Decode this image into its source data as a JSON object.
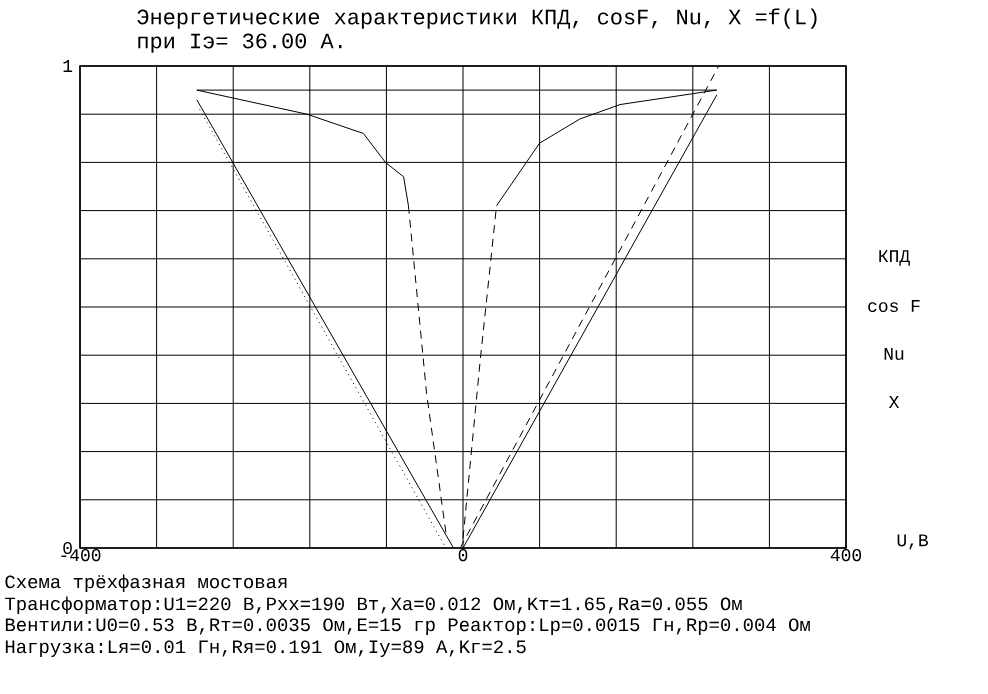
{
  "chart_data": {
    "type": "line",
    "title": "Энергетические характеристики  КПД, cosF, Nu, X =f(L)",
    "subtitle": "при Iэ= 36.00 А.",
    "xlabel": "U,В",
    "xlim": [
      -400,
      400
    ],
    "ylim": [
      0,
      1
    ],
    "xticks": [
      -400,
      {
        "value": -320,
        "label": null
      },
      {
        "value": -240,
        "label": null
      },
      {
        "value": -160,
        "label": null
      },
      {
        "value": -80,
        "label": null
      },
      0,
      {
        "value": 80,
        "label": null
      },
      {
        "value": 160,
        "label": null
      },
      {
        "value": 240,
        "label": null
      },
      {
        "value": 320,
        "label": null
      },
      400
    ],
    "yticks": [
      0,
      {
        "value": 0.1,
        "label": null
      },
      {
        "value": 0.2,
        "label": null
      },
      {
        "value": 0.3,
        "label": null
      },
      {
        "value": 0.4,
        "label": null
      },
      {
        "value": 0.5,
        "label": null
      },
      {
        "value": 0.6,
        "label": null
      },
      {
        "value": 0.7,
        "label": null
      },
      {
        "value": 0.8,
        "label": null
      },
      {
        "value": 0.9,
        "label": null
      },
      1
    ],
    "grid": true,
    "series": [
      {
        "color": "#000000",
        "line_style": "solid",
        "x": [
          -278,
          -163,
          -104,
          -81,
          -62,
          -57
        ],
        "values": [
          0.95,
          0.9,
          0.86,
          0.8,
          0.77,
          0.71
        ]
      },
      {
        "color": "#000000",
        "line_style": "dashed",
        "x": [
          -57,
          -38,
          -17
        ],
        "values": [
          0.71,
          0.32,
          0.02
        ]
      },
      {
        "color": "#000000",
        "line_style": "dashed",
        "x": [
          0,
          18,
          35
        ],
        "values": [
          0.02,
          0.39,
          0.71
        ]
      },
      {
        "color": "#000000",
        "line_style": "solid",
        "x": [
          35,
          80,
          122,
          164,
          265
        ],
        "values": [
          0.71,
          0.84,
          0.89,
          0.92,
          0.95
        ]
      },
      {
        "color": "#000000",
        "line_style": "solid",
        "x": [
          -278,
          265
        ],
        "values": [
          0.95,
          0.95
        ]
      },
      {
        "color": "#000000",
        "line_style": "solid",
        "x": [
          -278,
          -10
        ],
        "values": [
          0.93,
          0
        ]
      },
      {
        "color": "#000000",
        "line_style": "dotted",
        "x": [
          -275,
          -18
        ],
        "values": [
          0.91,
          0
        ]
      },
      {
        "color": "#000000",
        "line_style": "solid",
        "x": [
          0,
          265
        ],
        "values": [
          0,
          0.94
        ]
      },
      {
        "color": "#000000",
        "line_style": "dashed",
        "x": [
          -3,
          267
        ],
        "values": [
          0,
          1.0
        ]
      }
    ],
    "annotations": [
      "КПД",
      "cos F",
      "Nu",
      "X",
      "Схема трёхфазная мостовая",
      "Трансформатор:U1=220 В,Pхх=190 Вт,Xa=0.012 Ом,Kт=1.65,Ra=0.055 Ом",
      "Вентили:U0=0.53 В,Rт=0.0035 Ом,E=15 гр     Реактор:Lp=0.0015 Гн,Rp=0.004 Ом",
      "Нагрузка:Lя=0.01 Гн,Rя=0.191 Ом,Iу=89 А,Kг=2.5"
    ]
  }
}
